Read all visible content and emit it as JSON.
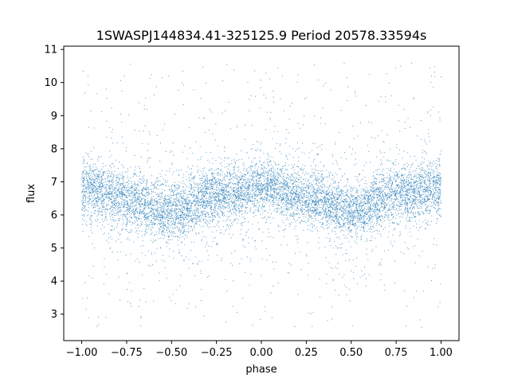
{
  "chart_data": {
    "type": "scatter",
    "title": "1SWASPJ144834.41-325125.9 Period 20578.33594s",
    "xlabel": "phase",
    "ylabel": "flux",
    "xlim": [
      -1.1,
      1.1
    ],
    "ylim": [
      2.2,
      11.1
    ],
    "xticks": [
      -1.0,
      -0.75,
      -0.5,
      -0.25,
      0.0,
      0.25,
      0.5,
      0.75,
      1.0
    ],
    "xtick_labels": [
      "−1.00",
      "−0.75",
      "−0.50",
      "−0.25",
      "0.00",
      "0.25",
      "0.50",
      "0.75",
      "1.00"
    ],
    "yticks": [
      3,
      4,
      5,
      6,
      7,
      8,
      9,
      10,
      11
    ],
    "ytick_labels": [
      "3",
      "4",
      "5",
      "6",
      "7",
      "8",
      "9",
      "10",
      "11"
    ],
    "grid": false,
    "legend": "none",
    "series": [
      {
        "marker_color": "#1f77b4",
        "phase_range": [
          -1.0,
          1.0
        ],
        "flux_range": [
          2.6,
          10.6
        ],
        "profile_phase": [
          -1.0,
          -0.75,
          -0.5,
          -0.25,
          0.0,
          0.25,
          0.5,
          0.75,
          1.0
        ],
        "profile_flux": [
          6.8,
          6.5,
          6.1,
          6.6,
          6.85,
          6.5,
          6.1,
          6.6,
          6.85
        ]
      }
    ]
  }
}
